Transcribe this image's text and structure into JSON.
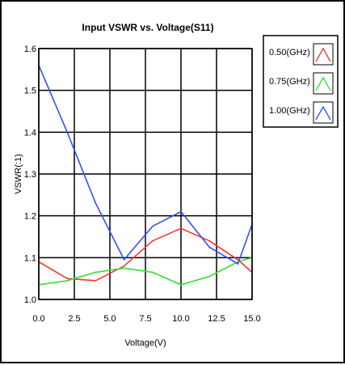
{
  "chart_data": {
    "type": "line",
    "title": "Input VSWR vs. Voltage(S11)",
    "xlabel": "Voltage(V)",
    "ylabel": "VSWR(:1)",
    "xlim": [
      0.0,
      15.0
    ],
    "ylim": [
      1.0,
      1.6
    ],
    "x_ticks": [
      0.0,
      2.5,
      5.0,
      7.5,
      10.0,
      12.5,
      15.0
    ],
    "x_tick_labels": [
      "0.0",
      "2.5",
      "5.0",
      "7.5",
      "10.0",
      "12.5",
      "15.0"
    ],
    "y_ticks": [
      1.0,
      1.1,
      1.2,
      1.3,
      1.4,
      1.5,
      1.6
    ],
    "y_tick_labels": [
      "1.0",
      "1.1",
      "1.2",
      "1.3",
      "1.4",
      "1.5",
      "1.6"
    ],
    "grid": true,
    "legend_position": "right",
    "series": [
      {
        "name": "0.50(GHz)",
        "color": "#ff3030",
        "x": [
          0.0,
          2.0,
          4.0,
          6.0,
          8.0,
          10.0,
          12.0,
          14.0,
          15.0
        ],
        "y": [
          1.09,
          1.05,
          1.045,
          1.08,
          1.14,
          1.17,
          1.14,
          1.095,
          1.065
        ]
      },
      {
        "name": "0.75(GHz)",
        "color": "#30e030",
        "x": [
          0.0,
          2.0,
          4.0,
          6.0,
          8.0,
          10.0,
          12.0,
          14.0,
          15.0
        ],
        "y": [
          1.035,
          1.045,
          1.065,
          1.075,
          1.065,
          1.035,
          1.055,
          1.09,
          1.1
        ]
      },
      {
        "name": "1.00(GHz)",
        "color": "#3050ff",
        "x": [
          0.0,
          2.0,
          4.0,
          6.0,
          8.0,
          10.0,
          12.0,
          14.0,
          15.0
        ],
        "y": [
          1.56,
          1.4,
          1.23,
          1.095,
          1.175,
          1.21,
          1.125,
          1.085,
          1.18
        ]
      }
    ]
  }
}
